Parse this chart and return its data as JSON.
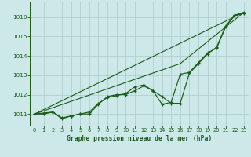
{
  "title": "Graphe pression niveau de la mer (hPa)",
  "bg_color": "#cce8e8",
  "grid_color": "#aacccc",
  "line_color": "#1a5c1a",
  "spine_color": "#1a5c1a",
  "xlim": [
    -0.5,
    23.5
  ],
  "ylim": [
    1010.4,
    1016.8
  ],
  "yticks": [
    1011,
    1012,
    1013,
    1014,
    1015,
    1016
  ],
  "xticks": [
    0,
    1,
    2,
    3,
    4,
    5,
    6,
    7,
    8,
    9,
    10,
    11,
    12,
    13,
    14,
    15,
    16,
    17,
    18,
    19,
    20,
    21,
    22,
    23
  ],
  "series1": [
    1011.0,
    1011.0,
    1011.1,
    1010.8,
    1010.9,
    1011.0,
    1011.0,
    1011.5,
    1011.9,
    1012.0,
    1012.0,
    1012.2,
    1012.45,
    1012.2,
    1011.9,
    1011.55,
    1011.55,
    1013.1,
    1013.6,
    1014.1,
    1014.45,
    1015.55,
    1016.1,
    1016.25
  ],
  "series2": [
    1011.0,
    1011.05,
    1011.1,
    1010.75,
    1010.9,
    1011.0,
    1011.1,
    1011.55,
    1011.85,
    1011.95,
    1012.05,
    1012.4,
    1012.5,
    1012.2,
    1011.5,
    1011.6,
    1013.05,
    1013.15,
    1013.65,
    1014.15,
    1014.4,
    1015.5,
    1016.1,
    1016.2
  ],
  "series3_x": [
    0,
    16,
    23
  ],
  "series3_y": [
    1011.0,
    1013.6,
    1016.25
  ],
  "ref_line_x": [
    0,
    23
  ],
  "ref_line_y": [
    1011.0,
    1016.25
  ]
}
